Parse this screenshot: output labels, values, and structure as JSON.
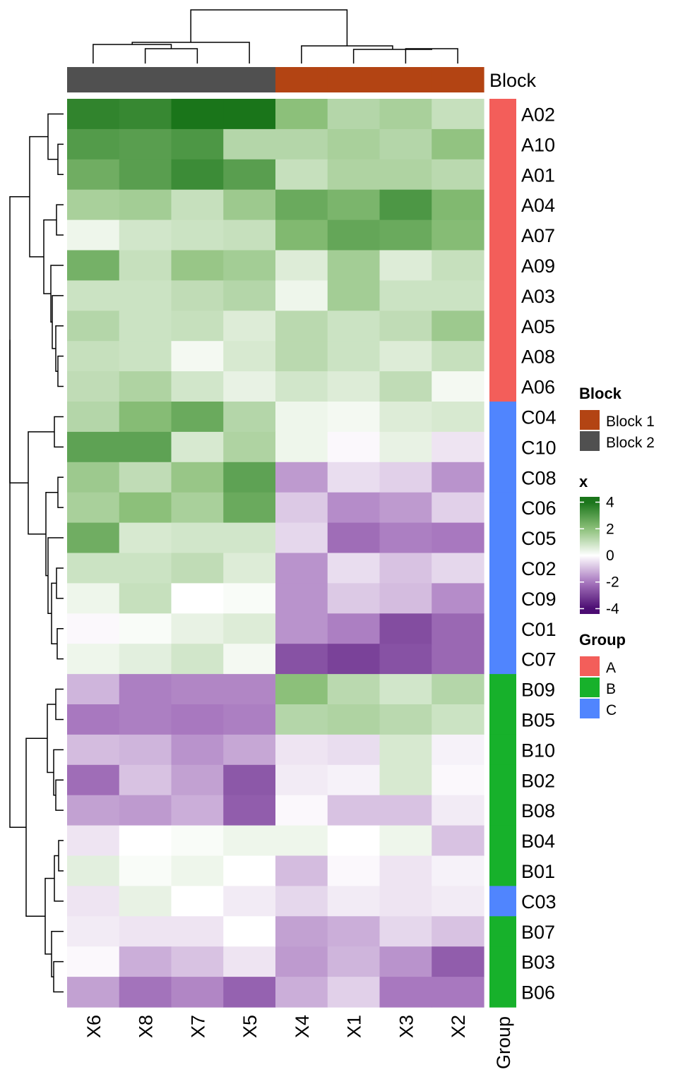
{
  "chart_data": {
    "type": "heatmap",
    "columns": [
      "X6",
      "X8",
      "X7",
      "X5",
      "X4",
      "X1",
      "X3",
      "X2"
    ],
    "rows": [
      "A02",
      "A10",
      "A01",
      "A04",
      "A07",
      "A09",
      "A03",
      "A05",
      "A08",
      "A06",
      "C04",
      "C10",
      "C08",
      "C06",
      "C05",
      "C02",
      "C09",
      "C01",
      "C07",
      "B09",
      "B05",
      "B10",
      "B02",
      "B08",
      "B04",
      "B01",
      "C03",
      "B07",
      "B03",
      "B06"
    ],
    "values": [
      [
        3.6,
        3.5,
        4.0,
        4.3,
        2.0,
        1.3,
        1.5,
        1.0
      ],
      [
        3.0,
        2.9,
        3.1,
        1.3,
        1.3,
        1.5,
        1.3,
        1.9
      ],
      [
        2.5,
        2.9,
        3.4,
        2.9,
        1.0,
        1.4,
        1.4,
        1.2
      ],
      [
        1.5,
        1.6,
        1.0,
        1.7,
        2.6,
        2.3,
        3.1,
        2.2
      ],
      [
        0.3,
        0.8,
        0.9,
        1.0,
        2.2,
        2.7,
        2.6,
        2.1
      ],
      [
        2.4,
        1.0,
        1.8,
        1.6,
        0.6,
        1.6,
        0.6,
        1.0
      ],
      [
        0.9,
        0.9,
        1.1,
        1.3,
        0.3,
        1.6,
        0.9,
        0.9
      ],
      [
        1.3,
        0.9,
        1.0,
        0.6,
        1.2,
        0.9,
        1.1,
        1.7
      ],
      [
        1.0,
        0.9,
        0.2,
        0.7,
        1.2,
        0.9,
        0.6,
        1.0
      ],
      [
        1.1,
        1.4,
        0.8,
        0.4,
        0.8,
        0.6,
        1.1,
        0.2
      ],
      [
        1.3,
        2.1,
        2.6,
        1.3,
        0.3,
        0.2,
        0.6,
        0.7
      ],
      [
        2.8,
        2.8,
        0.7,
        1.4,
        0.3,
        -0.1,
        0.4,
        -0.4
      ],
      [
        1.7,
        1.1,
        1.8,
        2.8,
        -1.5,
        -0.5,
        -0.7,
        -1.6
      ],
      [
        1.5,
        2.0,
        1.5,
        2.6,
        -0.8,
        -1.7,
        -1.5,
        -0.7
      ],
      [
        2.5,
        0.7,
        0.8,
        0.8,
        -0.6,
        -2.2,
        -1.9,
        -2.0
      ],
      [
        0.9,
        0.9,
        1.1,
        0.6,
        -1.6,
        -0.5,
        -0.9,
        -0.6
      ],
      [
        0.3,
        1.0,
        0.0,
        0.1,
        -1.6,
        -0.8,
        -1.0,
        -1.7
      ],
      [
        -0.1,
        0.1,
        0.4,
        0.6,
        -1.6,
        -1.9,
        -2.8,
        -2.3
      ],
      [
        0.3,
        0.5,
        0.8,
        0.2,
        -2.7,
        -3.0,
        -2.7,
        -2.3
      ],
      [
        -1.1,
        -1.9,
        -1.8,
        -1.8,
        2.0,
        1.2,
        0.8,
        1.3
      ],
      [
        -2.0,
        -1.9,
        -2.0,
        -1.9,
        1.3,
        1.4,
        1.2,
        0.9
      ],
      [
        -1.0,
        -1.1,
        -1.6,
        -1.3,
        -0.4,
        -0.5,
        0.7,
        -0.2
      ],
      [
        -2.2,
        -0.9,
        -1.4,
        -2.6,
        -0.3,
        -0.2,
        0.7,
        -0.1
      ],
      [
        -1.4,
        -1.5,
        -1.2,
        -2.5,
        -0.1,
        -0.9,
        -0.9,
        -0.3
      ],
      [
        -0.4,
        0.0,
        0.1,
        0.3,
        0.3,
        0.0,
        0.3,
        -0.9
      ],
      [
        0.5,
        0.1,
        0.3,
        0.0,
        -1.0,
        -0.1,
        -0.4,
        -0.2
      ],
      [
        -0.4,
        0.4,
        0.0,
        -0.3,
        -0.6,
        -0.3,
        -0.4,
        -0.3
      ],
      [
        -0.3,
        -0.4,
        -0.4,
        0.0,
        -1.4,
        -1.2,
        -0.6,
        -0.9
      ],
      [
        -0.1,
        -1.2,
        -0.9,
        -0.4,
        -1.5,
        -1.1,
        -1.6,
        -2.5
      ],
      [
        -1.4,
        -2.1,
        -1.8,
        -2.4,
        -1.2,
        -0.7,
        -2.0,
        -2.0
      ]
    ],
    "color_scale": {
      "breaks": [
        -4,
        -2,
        0,
        2,
        4
      ],
      "colors": [
        "#4b0c72",
        "#a878bf",
        "#ffffff",
        "#8cc07a",
        "#1a751a"
      ]
    },
    "column_annotation": {
      "name": "Block",
      "values": [
        "Block 2",
        "Block 2",
        "Block 2",
        "Block 2",
        "Block 1",
        "Block 1",
        "Block 1",
        "Block 1"
      ],
      "colors": {
        "Block 1": "#b34413",
        "Block 2": "#505050"
      }
    },
    "row_annotation": {
      "name": "Group",
      "values": [
        "A",
        "A",
        "A",
        "A",
        "A",
        "A",
        "A",
        "A",
        "A",
        "A",
        "C",
        "C",
        "C",
        "C",
        "C",
        "C",
        "C",
        "C",
        "C",
        "B",
        "B",
        "B",
        "B",
        "B",
        "B",
        "B",
        "C",
        "B",
        "B",
        "B"
      ],
      "colors": {
        "A": "#f35e5a",
        "B": "#17b12b",
        "C": "#5085fe"
      }
    },
    "legends": {
      "block": {
        "title": "Block",
        "items": [
          {
            "label": "Block 1",
            "color": "#b34413"
          },
          {
            "label": "Block 2",
            "color": "#505050"
          }
        ]
      },
      "x": {
        "title": "x",
        "ticks": [
          "4",
          "2",
          "0",
          "-2",
          "-4"
        ],
        "tick_values": [
          4,
          2,
          0,
          -2,
          -4
        ],
        "range": [
          -4.4,
          4.4
        ]
      },
      "group": {
        "title": "Group",
        "items": [
          {
            "label": "A",
            "color": "#f35e5a"
          },
          {
            "label": "B",
            "color": "#17b12b"
          },
          {
            "label": "C",
            "color": "#5085fe"
          }
        ]
      }
    }
  }
}
